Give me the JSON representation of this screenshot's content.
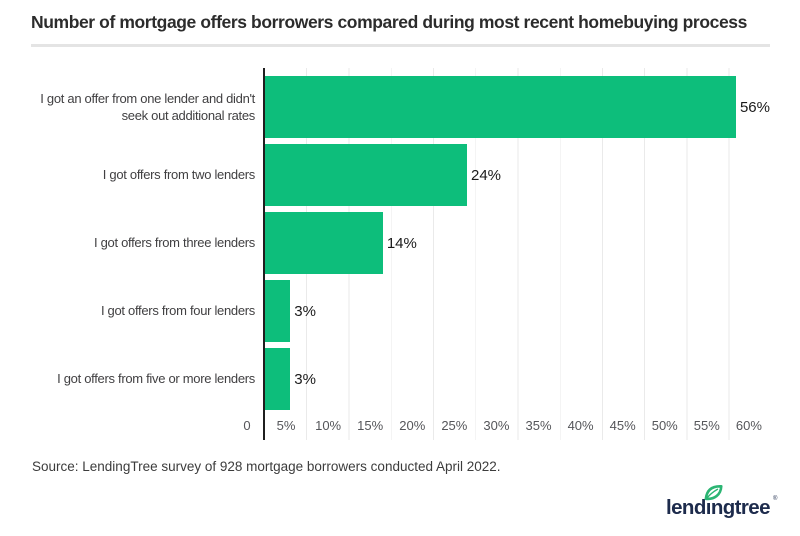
{
  "title": "Number of mortgage offers borrowers compared during most recent homebuying process",
  "source": "Source: LendingTree survey of 928 mortgage borrowers conducted April 2022.",
  "logo": {
    "name": "lendingtree",
    "display_text": "lendıngtree",
    "registered": "®"
  },
  "colors": {
    "bar": "#0dbe7b",
    "axis": "#1f1f1f",
    "gridline": "#eaeaea",
    "logo_navy": "#1d2b4c",
    "leaf_green": "#2bb573"
  },
  "chart_data": {
    "type": "bar",
    "orientation": "horizontal",
    "title": "Number of mortgage offers borrowers compared during most recent homebuying process",
    "categories": [
      "I got an offer from one lender and didn't\nseek out additional rates",
      "I got offers from two lenders",
      "I got offers from three lenders",
      "I got offers from four lenders",
      "I got offers from five or more lenders"
    ],
    "values": [
      56,
      24,
      14,
      3,
      3
    ],
    "value_labels": [
      "56%",
      "24%",
      "14%",
      "3%",
      "3%"
    ],
    "x_axis_ticks": [
      "0",
      "5%",
      "10%",
      "15%",
      "20%",
      "25%",
      "30%",
      "35%",
      "40%",
      "45%",
      "50%",
      "55%",
      "60%"
    ],
    "xlim": [
      0,
      60
    ],
    "grid": true,
    "legend": false,
    "bar_color": "#0dbe7b"
  }
}
